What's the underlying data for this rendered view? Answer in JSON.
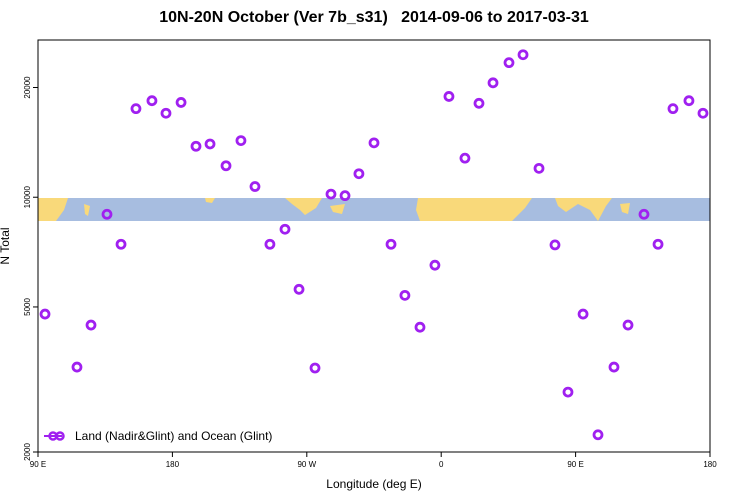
{
  "chart_data": {
    "type": "scatter",
    "title": "10N-20N October (Ver 7b_s31)   2014-09-06 to 2017-03-31",
    "xlabel": "Longitude (deg E)",
    "ylabel": "N Total",
    "legend": "Land (Nadir&Glint) and Ocean (Glint)",
    "legend_position": "lower left",
    "color": "#a020f0",
    "log_y": true,
    "xlim": [
      90,
      540
    ],
    "ylim": [
      2000,
      27000
    ],
    "xticks": [
      {
        "value": 90,
        "label": "90 E"
      },
      180,
      {
        "value": 270,
        "label": "90 W"
      },
      {
        "value": 360,
        "label": "0"
      },
      {
        "value": 450,
        "label": "90 E"
      },
      {
        "value": 540,
        "label": "180"
      }
    ],
    "yticks": [
      2000,
      5000,
      10000,
      20000
    ],
    "x": [
      94.7,
      116.1,
      125.5,
      136.2,
      145.6,
      155.6,
      166.3,
      175.7,
      185.8,
      195.8,
      205.2,
      215.9,
      225.9,
      235.3,
      245.3,
      255.4,
      264.8,
      275.5,
      286.2,
      295.6,
      304.9,
      315.0,
      326.4,
      335.7,
      345.8,
      355.8,
      365.2,
      375.9,
      385.3,
      394.7,
      405.4,
      414.8,
      425.5,
      436.2,
      444.9,
      455.0,
      465.0,
      475.7,
      485.1,
      495.8,
      505.2,
      515.2,
      525.9,
      535.3
    ],
    "values": [
      4780,
      3420,
      4460,
      8980,
      7430,
      17500,
      18400,
      17000,
      18200,
      13800,
      14000,
      12200,
      14300,
      10700,
      7430,
      8170,
      5590,
      3400,
      10200,
      10100,
      11600,
      14100,
      7430,
      5380,
      4400,
      6510,
      18900,
      12800,
      18100,
      20600,
      23400,
      24600,
      12000,
      7400,
      2920,
      4780,
      2230,
      3420,
      4460,
      8980,
      7430,
      17500,
      18400,
      17000
    ]
  }
}
